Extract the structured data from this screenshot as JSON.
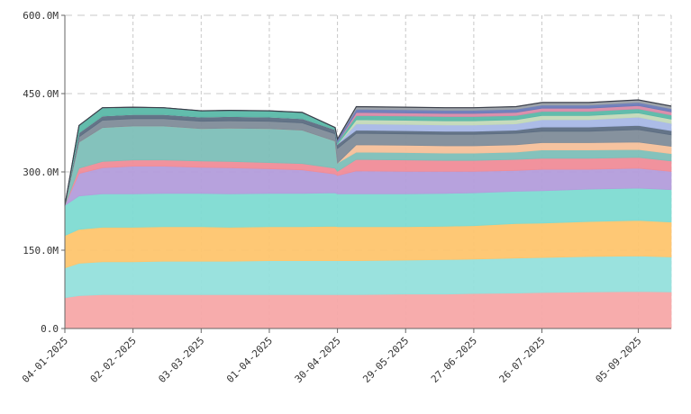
{
  "chart_data": {
    "type": "area",
    "stacked": true,
    "title": "",
    "xlabel": "",
    "ylabel": "",
    "ylim": [
      0,
      600000000
    ],
    "grid": true,
    "legend": "none",
    "y_ticks": [
      {
        "value": 0,
        "label": "0.0"
      },
      {
        "value": 150000000,
        "label": "150.0M"
      },
      {
        "value": 300000000,
        "label": "300.0M"
      },
      {
        "value": 450000000,
        "label": "450.0M"
      },
      {
        "value": 600000000,
        "label": "600.0M"
      }
    ],
    "x_start": "2025-01-04",
    "x_end": "2025-09-19",
    "x_ticks": [
      "04-01-2025",
      "02-02-2025",
      "03-03-2025",
      "01-04-2025",
      "30-04-2025",
      "29-05-2025",
      "27-06-2025",
      "26-07-2025",
      "05-09-2025"
    ],
    "x": [
      "2025-01-04",
      "2025-01-10",
      "2025-01-20",
      "2025-02-02",
      "2025-02-15",
      "2025-03-03",
      "2025-03-15",
      "2025-04-01",
      "2025-04-15",
      "2025-04-29",
      "2025-04-30",
      "2025-05-08",
      "2025-05-29",
      "2025-06-15",
      "2025-06-27",
      "2025-07-15",
      "2025-07-26",
      "2025-08-15",
      "2025-09-05",
      "2025-09-19"
    ],
    "series": [
      {
        "color": "#f7a8a8",
        "values": [
          59,
          63,
          65,
          65,
          65,
          65,
          65,
          65,
          65,
          65,
          65,
          65,
          66,
          66,
          67,
          68,
          69,
          70,
          71,
          70
        ]
      },
      {
        "color": "#95e0dc",
        "values": [
          57,
          62,
          63,
          63,
          64,
          64,
          64,
          65,
          65,
          65,
          65,
          65,
          65,
          66,
          66,
          67,
          67,
          68,
          68,
          67
        ]
      },
      {
        "color": "#fec56e",
        "values": [
          62,
          65,
          66,
          66,
          66,
          66,
          65,
          65,
          65,
          66,
          65,
          65,
          64,
          64,
          64,
          66,
          66,
          67,
          68,
          67
        ]
      },
      {
        "color": "#7edbd2",
        "values": [
          58,
          64,
          64,
          64,
          64,
          64,
          64,
          64,
          64,
          64,
          63,
          63,
          63,
          63,
          63,
          62,
          62,
          62,
          62,
          62
        ]
      },
      {
        "color": "#b39ddb",
        "values": [
          0,
          43,
          50,
          53,
          52,
          50,
          50,
          47,
          45,
          36,
          35,
          44,
          43,
          42,
          41,
          40,
          41,
          38,
          38,
          35
        ]
      },
      {
        "color": "#f08c98",
        "values": [
          0,
          10,
          12,
          12,
          12,
          12,
          12,
          12,
          12,
          11,
          8,
          22,
          22,
          21,
          21,
          21,
          21,
          21,
          21,
          20
        ]
      },
      {
        "color": "#7dbfb8",
        "values": [
          0,
          50,
          65,
          65,
          65,
          62,
          64,
          65,
          64,
          52,
          16,
          14,
          14,
          14,
          14,
          14,
          16,
          16,
          15,
          14
        ]
      },
      {
        "color": "#f5c09a",
        "values": [
          0,
          0,
          0,
          0,
          0,
          0,
          0,
          0,
          0,
          0,
          0,
          14,
          14,
          14,
          14,
          14,
          14,
          14,
          14,
          14
        ]
      },
      {
        "color": "#7f8c99",
        "values": [
          0,
          10,
          14,
          14,
          14,
          14,
          14,
          14,
          14,
          14,
          28,
          22,
          22,
          22,
          22,
          22,
          22,
          22,
          24,
          22
        ]
      },
      {
        "color": "#5c6d82",
        "values": [
          0,
          8,
          8,
          8,
          8,
          8,
          8,
          8,
          8,
          8,
          8,
          6,
          6,
          6,
          6,
          6,
          8,
          8,
          8,
          8
        ]
      },
      {
        "color": "#a8b8e6",
        "values": [
          0,
          0,
          0,
          0,
          0,
          0,
          0,
          0,
          0,
          0,
          0,
          12,
          12,
          12,
          12,
          12,
          14,
          14,
          16,
          14
        ]
      },
      {
        "color": "#c3d9b8",
        "values": [
          0,
          0,
          0,
          0,
          0,
          0,
          0,
          0,
          0,
          0,
          0,
          8,
          8,
          8,
          8,
          8,
          8,
          8,
          8,
          8
        ]
      },
      {
        "color": "#5ab8a8",
        "values": [
          0,
          14,
          16,
          14,
          13,
          12,
          12,
          12,
          12,
          4,
          4,
          8,
          8,
          8,
          8,
          8,
          8,
          8,
          8,
          8
        ]
      },
      {
        "color": "#d98aa8",
        "values": [
          0,
          0,
          0,
          0,
          0,
          0,
          0,
          0,
          0,
          0,
          0,
          6,
          6,
          6,
          6,
          6,
          6,
          6,
          6,
          6
        ]
      },
      {
        "color": "#6a7bb8",
        "values": [
          0,
          0,
          0,
          0,
          0,
          0,
          0,
          0,
          0,
          0,
          6,
          6,
          6,
          6,
          6,
          6,
          6,
          6,
          6,
          6
        ]
      },
      {
        "color": "#9aa0a8",
        "values": [
          0,
          0,
          0,
          0,
          0,
          0,
          0,
          0,
          0,
          0,
          0,
          5,
          5,
          5,
          5,
          5,
          5,
          5,
          5,
          5
        ]
      }
    ],
    "value_unit_multiplier": 1000000
  }
}
